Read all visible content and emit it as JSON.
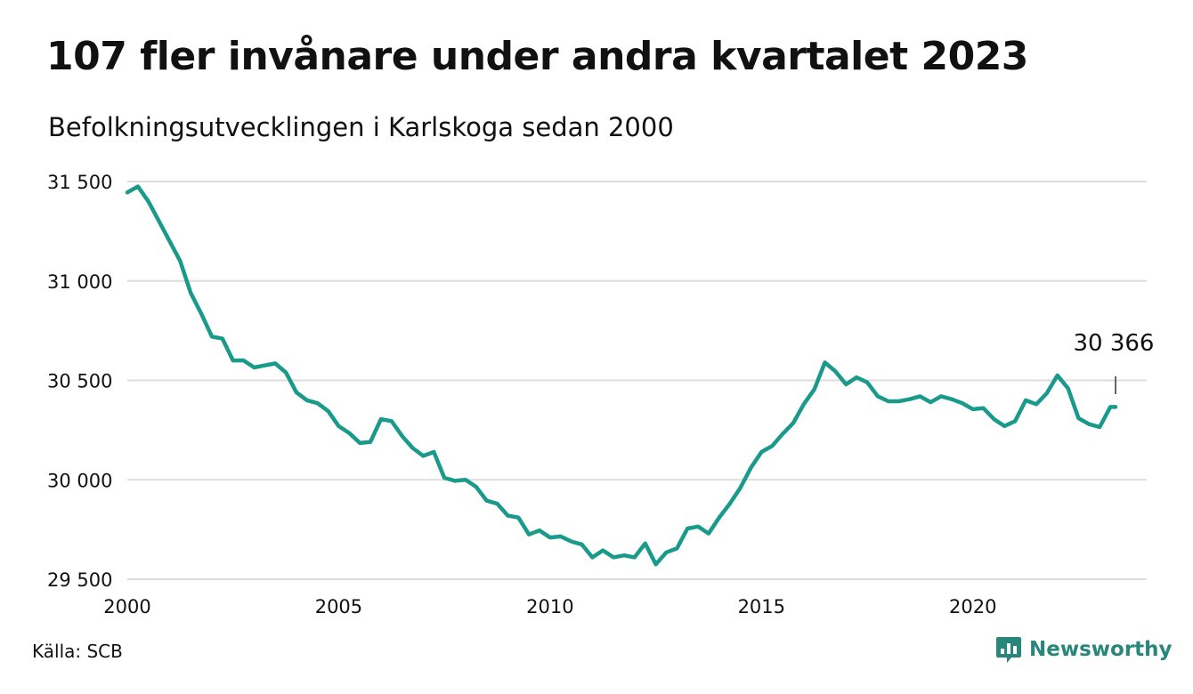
{
  "title": "107 fler invånare under andra kvartalet 2023",
  "subtitle": "Befolkningsutvecklingen i Karlskoga sedan 2000",
  "source": "Källa: SCB",
  "brand": {
    "name": "Newsworthy",
    "icon": "bar-chart-bubble-icon",
    "color": "#27877a"
  },
  "chart_data": {
    "type": "line",
    "color": "#1a9a8a",
    "grid": true,
    "ylim": [
      29500,
      31500
    ],
    "xlim": [
      2000,
      2024
    ],
    "yticks": [
      {
        "value": 31500,
        "label": "31 500"
      },
      {
        "value": 31000,
        "label": "31 000"
      },
      {
        "value": 30500,
        "label": "30 500"
      },
      {
        "value": 30000,
        "label": "30 000"
      },
      {
        "value": 29500,
        "label": "29 500"
      }
    ],
    "xticks": [
      {
        "value": 2000,
        "label": "2000"
      },
      {
        "value": 2005,
        "label": "2005"
      },
      {
        "value": 2010,
        "label": "2010"
      },
      {
        "value": 2015,
        "label": "2015"
      },
      {
        "value": 2020,
        "label": "2020"
      }
    ],
    "annotation": {
      "x": 2023.375,
      "label": "30 366"
    },
    "series": [
      {
        "x": [
          2000.0,
          2000.25,
          2000.5,
          2000.75,
          2001.0,
          2001.25,
          2001.5,
          2001.75,
          2002.0,
          2002.25,
          2002.5,
          2002.75,
          2003.0,
          2003.25,
          2003.5,
          2003.75,
          2004.0,
          2004.25,
          2004.5,
          2004.75,
          2005.0,
          2005.25,
          2005.5,
          2005.75,
          2006.0,
          2006.25,
          2006.5,
          2006.75,
          2007.0,
          2007.25,
          2007.5,
          2007.75,
          2008.0,
          2008.25,
          2008.5,
          2008.75,
          2009.0,
          2009.25,
          2009.5,
          2009.75,
          2010.0,
          2010.25,
          2010.5,
          2010.75,
          2011.0,
          2011.25,
          2011.5,
          2011.75,
          2012.0,
          2012.25,
          2012.5,
          2012.75,
          2013.0,
          2013.25,
          2013.5,
          2013.75,
          2014.0,
          2014.25,
          2014.5,
          2014.75,
          2015.0,
          2015.25,
          2015.5,
          2015.75,
          2016.0,
          2016.25,
          2016.5,
          2016.75,
          2017.0,
          2017.25,
          2017.5,
          2017.75,
          2018.0,
          2018.25,
          2018.5,
          2018.75,
          2019.0,
          2019.25,
          2019.5,
          2019.75,
          2020.0,
          2020.25,
          2020.5,
          2020.75,
          2021.0,
          2021.25,
          2021.5,
          2021.75,
          2022.0,
          2022.25,
          2022.5,
          2022.75,
          2023.0,
          2023.25,
          2023.375
        ],
        "values": [
          31445,
          31475,
          31400,
          31300,
          31200,
          31100,
          30940,
          30835,
          30720,
          30710,
          30600,
          30600,
          30565,
          30575,
          30585,
          30540,
          30440,
          30400,
          30385,
          30345,
          30270,
          30235,
          30185,
          30190,
          30305,
          30295,
          30220,
          30160,
          30120,
          30140,
          30010,
          29995,
          30000,
          29965,
          29895,
          29880,
          29820,
          29810,
          29725,
          29745,
          29710,
          29715,
          29690,
          29675,
          29610,
          29645,
          29610,
          29620,
          29610,
          29680,
          29575,
          29635,
          29655,
          29755,
          29765,
          29730,
          29810,
          29880,
          29960,
          30060,
          30140,
          30170,
          30230,
          30285,
          30380,
          30455,
          30590,
          30545,
          30480,
          30515,
          30490,
          30420,
          30395,
          30395,
          30405,
          30420,
          30390,
          30420,
          30405,
          30385,
          30355,
          30360,
          30305,
          30270,
          30295,
          30400,
          30380,
          30435,
          30525,
          30460,
          30310,
          30280,
          30265,
          30366,
          30366
        ]
      }
    ]
  }
}
